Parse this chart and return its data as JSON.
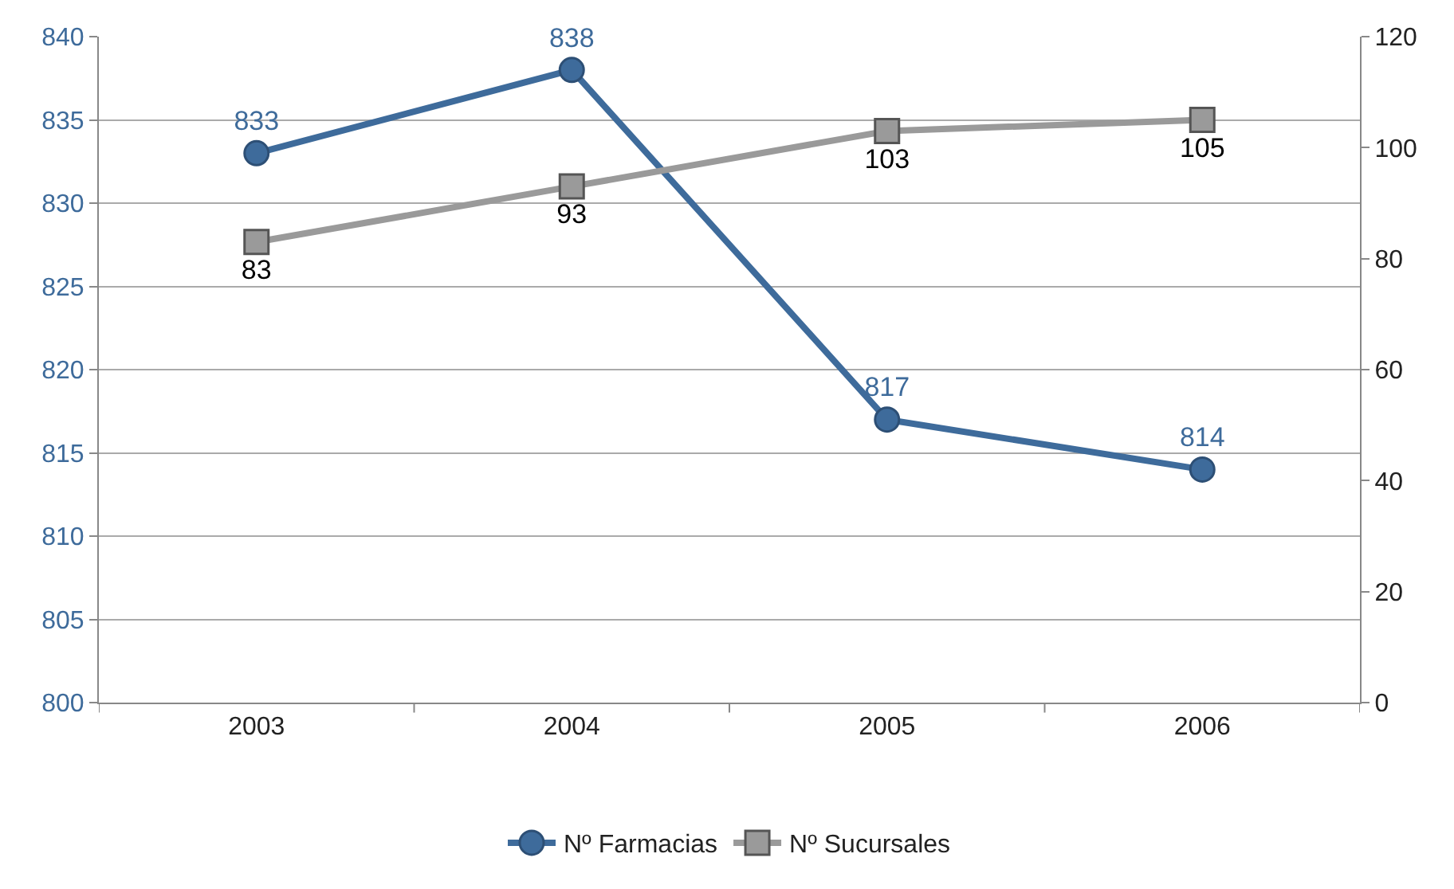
{
  "chart_data": {
    "type": "line",
    "categories": [
      "2003",
      "2004",
      "2005",
      "2006"
    ],
    "series": [
      {
        "name": "Nº Farmacias",
        "color": "#3e6b9b",
        "values": [
          833,
          838,
          817,
          814
        ],
        "marker": "circle"
      },
      {
        "name": "Nº Sucursales",
        "color": "#9a9a9a",
        "values": [
          83,
          93,
          103,
          105
        ],
        "marker": "square",
        "axis": "y2"
      }
    ],
    "ylim": [
      800,
      840
    ],
    "yticks": [
      800,
      805,
      810,
      815,
      820,
      825,
      830,
      835,
      840
    ],
    "y2lim": [
      0,
      120
    ],
    "y2ticks": [
      0,
      20,
      40,
      60,
      80,
      100,
      120
    ],
    "grid": "y",
    "legend": "bottom",
    "data_labels": true,
    "line_style": "solid"
  }
}
